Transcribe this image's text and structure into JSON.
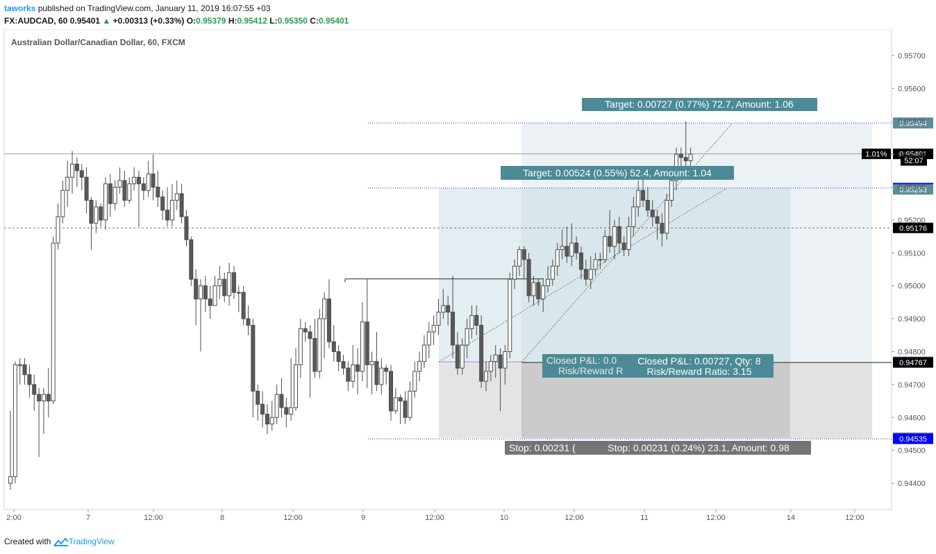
{
  "header": {
    "author": "taworks",
    "published_text": "published on TradingView.com, January 11, 2019 16:07:55 +03",
    "symbol": "FX:AUDCAD, 60",
    "last": "0.95401",
    "change": "+0.00313 (+0.33%)",
    "open_label": "O:",
    "open": "0.95379",
    "high_label": "H:",
    "high": "0.95412",
    "low_label": "L:",
    "low": "0.95350",
    "close_label": "C:",
    "close": "0.95401"
  },
  "chart_title": "Australian Dollar/Canadian Dollar, 60, FXCM",
  "footer": {
    "created_with": "Created with",
    "brand": "TradingView"
  },
  "colors": {
    "candle_up": "#ffffff",
    "candle_down": "#595959",
    "wick": "#4a4a4a",
    "target_zone": "#dfe9ee",
    "stop_zone": "#d3d3d3",
    "teal_label": "#4b8a96",
    "stop_label": "#757575",
    "blue_tag": "#0000ff",
    "purple_tag": "#7b5ea7",
    "black_tag": "#000000"
  },
  "chart_data": {
    "type": "candlestick",
    "title": "Australian Dollar/Canadian Dollar, 60, FXCM",
    "ylim": [
      0.9432,
      0.9578
    ],
    "y_ticks": [
      "0.95700",
      "0.95600",
      "0.95500",
      "0.95400",
      "0.95300",
      "0.95200",
      "0.95100",
      "0.95000",
      "0.94900",
      "0.94800",
      "0.94700",
      "0.94600",
      "0.94500",
      "0.94400"
    ],
    "x_ticks": [
      "2:00",
      "7",
      "12:00",
      "8",
      "12:00",
      "9",
      "12:00",
      "10",
      "12:00",
      "11",
      "12:00",
      "14",
      "12:00"
    ],
    "candles": [
      [
        0.944,
        0.9442,
        0.9462,
        0.9438
      ],
      [
        0.9442,
        0.9476,
        0.9477,
        0.944
      ],
      [
        0.9476,
        0.9476,
        0.9478,
        0.947
      ],
      [
        0.9476,
        0.9473,
        0.9478,
        0.947
      ],
      [
        0.9473,
        0.947,
        0.9476,
        0.9466
      ],
      [
        0.947,
        0.9467,
        0.9473,
        0.9462
      ],
      [
        0.9467,
        0.9465,
        0.9469,
        0.9448
      ],
      [
        0.9465,
        0.9467,
        0.9469,
        0.9455
      ],
      [
        0.9467,
        0.9465,
        0.9475,
        0.946
      ],
      [
        0.9465,
        0.9513,
        0.9515,
        0.9464
      ],
      [
        0.9513,
        0.9521,
        0.9525,
        0.9511
      ],
      [
        0.9521,
        0.9529,
        0.9532,
        0.9519
      ],
      [
        0.9529,
        0.9533,
        0.9538,
        0.9524
      ],
      [
        0.9533,
        0.9537,
        0.9541,
        0.9528
      ],
      [
        0.9537,
        0.9535,
        0.9539,
        0.953
      ],
      [
        0.9535,
        0.9533,
        0.9537,
        0.9529
      ],
      [
        0.9533,
        0.9526,
        0.9536,
        0.9522
      ],
      [
        0.9526,
        0.9519,
        0.9527,
        0.9511
      ],
      [
        0.9519,
        0.9524,
        0.9526,
        0.9516
      ],
      [
        0.9524,
        0.952,
        0.9525,
        0.9518
      ],
      [
        0.952,
        0.9531,
        0.9533,
        0.9517
      ],
      [
        0.9531,
        0.9525,
        0.9534,
        0.9521
      ],
      [
        0.9525,
        0.953,
        0.9532,
        0.9523
      ],
      [
        0.953,
        0.9532,
        0.9536,
        0.9528
      ],
      [
        0.9532,
        0.9526,
        0.9535,
        0.9524
      ],
      [
        0.9526,
        0.9531,
        0.9533,
        0.9525
      ],
      [
        0.9531,
        0.9533,
        0.9536,
        0.9529
      ],
      [
        0.9533,
        0.9531,
        0.9535,
        0.9518
      ],
      [
        0.9531,
        0.9529,
        0.9533,
        0.9526
      ],
      [
        0.9529,
        0.9534,
        0.9538,
        0.9527
      ],
      [
        0.9534,
        0.953,
        0.954,
        0.9526
      ],
      [
        0.953,
        0.9527,
        0.9535,
        0.9524
      ],
      [
        0.9527,
        0.9523,
        0.9529,
        0.952
      ],
      [
        0.9523,
        0.952,
        0.953,
        0.9518
      ],
      [
        0.952,
        0.9526,
        0.9531,
        0.9518
      ],
      [
        0.9526,
        0.9528,
        0.9532,
        0.9523
      ],
      [
        0.9528,
        0.9521,
        0.9531,
        0.9519
      ],
      [
        0.9521,
        0.9514,
        0.9523,
        0.9512
      ],
      [
        0.9514,
        0.9502,
        0.9515,
        0.95
      ],
      [
        0.9502,
        0.9496,
        0.9505,
        0.9488
      ],
      [
        0.9496,
        0.95,
        0.9502,
        0.948
      ],
      [
        0.95,
        0.9496,
        0.9503,
        0.9492
      ],
      [
        0.9496,
        0.9494,
        0.95,
        0.949
      ],
      [
        0.9494,
        0.95,
        0.9503,
        0.9494
      ],
      [
        0.95,
        0.9502,
        0.9506,
        0.9496
      ],
      [
        0.9502,
        0.9497,
        0.9504,
        0.9495
      ],
      [
        0.9497,
        0.9504,
        0.9507,
        0.9494
      ],
      [
        0.9504,
        0.9498,
        0.9506,
        0.9496
      ],
      [
        0.9498,
        0.9498,
        0.95,
        0.9492
      ],
      [
        0.9498,
        0.949,
        0.95,
        0.9488
      ],
      [
        0.949,
        0.9488,
        0.9494,
        0.9485
      ],
      [
        0.9488,
        0.9468,
        0.949,
        0.946
      ],
      [
        0.9468,
        0.9464,
        0.947,
        0.9459
      ],
      [
        0.9464,
        0.9461,
        0.9468,
        0.9457
      ],
      [
        0.9461,
        0.9458,
        0.9464,
        0.9455
      ],
      [
        0.9458,
        0.946,
        0.9465,
        0.9456
      ],
      [
        0.946,
        0.9467,
        0.947,
        0.9458
      ],
      [
        0.9467,
        0.9463,
        0.9472,
        0.946
      ],
      [
        0.9463,
        0.9461,
        0.9466,
        0.9457
      ],
      [
        0.9461,
        0.9463,
        0.9478,
        0.9459
      ],
      [
        0.9463,
        0.9476,
        0.9481,
        0.9462
      ],
      [
        0.9476,
        0.9487,
        0.949,
        0.9472
      ],
      [
        0.9487,
        0.9486,
        0.9489,
        0.9483
      ],
      [
        0.9486,
        0.9484,
        0.9488,
        0.9466
      ],
      [
        0.9484,
        0.9474,
        0.949,
        0.9472
      ],
      [
        0.9474,
        0.949,
        0.9493,
        0.9472
      ],
      [
        0.949,
        0.9496,
        0.9498,
        0.9478
      ],
      [
        0.9496,
        0.9483,
        0.9502,
        0.9481
      ],
      [
        0.9483,
        0.948,
        0.9488,
        0.9477
      ],
      [
        0.948,
        0.9477,
        0.9482,
        0.9474
      ],
      [
        0.9477,
        0.9475,
        0.9479,
        0.9473
      ],
      [
        0.9475,
        0.9471,
        0.9477,
        0.9468
      ],
      [
        0.9471,
        0.9476,
        0.9482,
        0.9469
      ],
      [
        0.9476,
        0.9474,
        0.9481,
        0.9467
      ],
      [
        0.9474,
        0.9489,
        0.9495,
        0.9471
      ],
      [
        0.9489,
        0.9476,
        0.9502,
        0.9469
      ],
      [
        0.9476,
        0.9477,
        0.948,
        0.9467
      ],
      [
        0.9477,
        0.947,
        0.9486,
        0.9468
      ],
      [
        0.947,
        0.9475,
        0.9478,
        0.9467
      ],
      [
        0.9475,
        0.9474,
        0.9476,
        0.947
      ],
      [
        0.9474,
        0.9462,
        0.9476,
        0.9459
      ],
      [
        0.9462,
        0.9466,
        0.9469,
        0.9461
      ],
      [
        0.9466,
        0.9465,
        0.9467,
        0.9458
      ],
      [
        0.9465,
        0.946,
        0.9468,
        0.9458
      ],
      [
        0.946,
        0.9468,
        0.9471,
        0.9459
      ],
      [
        0.9468,
        0.9474,
        0.9477,
        0.9466
      ],
      [
        0.9474,
        0.9477,
        0.948,
        0.9471
      ],
      [
        0.9477,
        0.9482,
        0.9485,
        0.9475
      ],
      [
        0.9482,
        0.9486,
        0.9489,
        0.9478
      ],
      [
        0.9486,
        0.9488,
        0.9491,
        0.9482
      ],
      [
        0.9488,
        0.9492,
        0.9496,
        0.9485
      ],
      [
        0.9492,
        0.9494,
        0.9499,
        0.949
      ],
      [
        0.9494,
        0.9492,
        0.9497,
        0.9488
      ],
      [
        0.9492,
        0.9482,
        0.9503,
        0.9478
      ],
      [
        0.9482,
        0.9475,
        0.9486,
        0.9473
      ],
      [
        0.9475,
        0.9482,
        0.9484,
        0.9473
      ],
      [
        0.9482,
        0.9487,
        0.949,
        0.9478
      ],
      [
        0.9487,
        0.9491,
        0.9494,
        0.9484
      ],
      [
        0.9491,
        0.9488,
        0.9494,
        0.9485
      ],
      [
        0.9488,
        0.9471,
        0.9491,
        0.9469
      ],
      [
        0.9471,
        0.9474,
        0.9477,
        0.9468
      ],
      [
        0.9474,
        0.9477,
        0.9479,
        0.9471
      ],
      [
        0.9477,
        0.9479,
        0.9482,
        0.9472
      ],
      [
        0.9479,
        0.9475,
        0.9481,
        0.9462
      ],
      [
        0.9475,
        0.948,
        0.9482,
        0.947
      ],
      [
        0.948,
        0.9502,
        0.9504,
        0.9478
      ],
      [
        0.9502,
        0.9506,
        0.9508,
        0.9499
      ],
      [
        0.9506,
        0.9511,
        0.9512,
        0.9503
      ],
      [
        0.9511,
        0.9508,
        0.9512,
        0.9502
      ],
      [
        0.9508,
        0.9497,
        0.951,
        0.9495
      ],
      [
        0.9497,
        0.9501,
        0.9503,
        0.9494
      ],
      [
        0.9501,
        0.9496,
        0.9502,
        0.9494
      ],
      [
        0.9496,
        0.95,
        0.9502,
        0.9492
      ],
      [
        0.95,
        0.9502,
        0.9506,
        0.9498
      ],
      [
        0.9502,
        0.9506,
        0.9508,
        0.95
      ],
      [
        0.9506,
        0.9511,
        0.9513,
        0.9503
      ],
      [
        0.9511,
        0.9512,
        0.9517,
        0.9508
      ],
      [
        0.9512,
        0.9509,
        0.9518,
        0.9507
      ],
      [
        0.9509,
        0.9513,
        0.9519,
        0.9506
      ],
      [
        0.9513,
        0.951,
        0.9515,
        0.9508
      ],
      [
        0.951,
        0.9505,
        0.9512,
        0.9502
      ],
      [
        0.9505,
        0.9502,
        0.9508,
        0.95
      ],
      [
        0.9502,
        0.9505,
        0.9509,
        0.9499
      ],
      [
        0.9505,
        0.9508,
        0.951,
        0.9503
      ],
      [
        0.9508,
        0.9508,
        0.951,
        0.9505
      ],
      [
        0.9508,
        0.9515,
        0.9517,
        0.9507
      ],
      [
        0.9515,
        0.9512,
        0.9523,
        0.951
      ],
      [
        0.9512,
        0.9518,
        0.952,
        0.9508
      ],
      [
        0.9518,
        0.9513,
        0.9521,
        0.951
      ],
      [
        0.9513,
        0.9511,
        0.9515,
        0.9509
      ],
      [
        0.9511,
        0.9518,
        0.9521,
        0.9509
      ],
      [
        0.9518,
        0.9524,
        0.9527,
        0.9515
      ],
      [
        0.9524,
        0.9529,
        0.9532,
        0.9521
      ],
      [
        0.9529,
        0.9526,
        0.9533,
        0.9524
      ],
      [
        0.9526,
        0.9523,
        0.953,
        0.9521
      ],
      [
        0.9523,
        0.9521,
        0.9526,
        0.9518
      ],
      [
        0.9521,
        0.9519,
        0.9523,
        0.9514
      ],
      [
        0.9519,
        0.9516,
        0.9522,
        0.9512
      ],
      [
        0.9516,
        0.9526,
        0.9528,
        0.9514
      ],
      [
        0.9526,
        0.9532,
        0.9534,
        0.9524
      ],
      [
        0.9532,
        0.954,
        0.9542,
        0.9529
      ],
      [
        0.954,
        0.9539,
        0.9542,
        0.9536
      ],
      [
        0.9539,
        0.9538,
        0.955,
        0.9535
      ],
      [
        0.9538,
        0.954,
        0.9542,
        0.9535
      ]
    ],
    "price_levels": [
      {
        "label": "0.95495",
        "value": 0.95495,
        "style": "blue"
      },
      {
        "label": "0.95494",
        "value": 0.95494,
        "style": "teal"
      },
      {
        "label": "0.95401",
        "value": 0.95401,
        "style": "black"
      },
      {
        "label": "52:07",
        "value": 0.95381,
        "style": "black-small"
      },
      {
        "label": "0.95297",
        "value": 0.95297,
        "style": "blue"
      },
      {
        "label": "0.95293",
        "value": 0.95293,
        "style": "teal"
      },
      {
        "label": "0.95176",
        "value": 0.95176,
        "style": "black"
      },
      {
        "label": "0.94769",
        "value": 0.94769,
        "style": "purple"
      },
      {
        "label": "0.94767",
        "value": 0.94767,
        "style": "black"
      },
      {
        "label": "0.94538",
        "value": 0.94538,
        "style": "grey"
      },
      {
        "label": "0.94536",
        "value": 0.94536,
        "style": "grey"
      },
      {
        "label": "0.94535",
        "value": 0.94535,
        "style": "blue"
      }
    ],
    "percent_tag": "1.01%",
    "annotations": {
      "target_outer": "Target: 0.00727 (0.77%) 72.7, Amount: 1.06",
      "target_inner": "Target: 0.00524 (0.55%) 52.4, Amount: 1.04",
      "closed_back": "Closed P&L: 0.0",
      "risk_back": "Risk/Reward R",
      "closed_front": "Closed P&L: 0.00727, Qty: 8",
      "risk_front": "Risk/Reward Ratio: 3.15",
      "stop_back": "Stop: 0.00231 (",
      "stop_front": "Stop: 0.00231 (0.24%) 23.1, Amount: 0.98"
    }
  }
}
